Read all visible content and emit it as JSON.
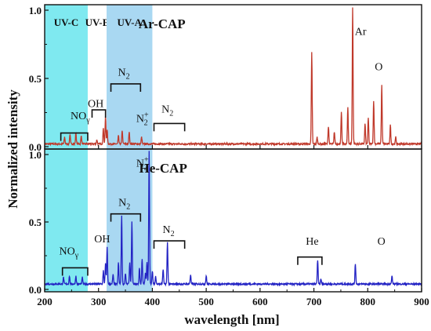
{
  "chart_data": {
    "type": "line",
    "xlabel": "wavelength [nm]",
    "ylabel": "Normalized intensity",
    "xlim": [
      200,
      900
    ],
    "x_ticks": [
      "200",
      "300",
      "400",
      "500",
      "600",
      "700",
      "800",
      "900"
    ],
    "x_tick_values": [
      200,
      300,
      400,
      500,
      600,
      700,
      800,
      900
    ],
    "grid": false,
    "uv_bands": [
      {
        "label": "UV-C",
        "range": [
          200,
          280
        ],
        "color": "#7fe9f0"
      },
      {
        "label": "UV-B",
        "range": [
          280,
          315
        ],
        "color": "#ffffff"
      },
      {
        "label": "UV-A",
        "range": [
          315,
          400
        ],
        "color": "#a9d8f2"
      }
    ],
    "panels": [
      {
        "title": "Ar-CAP",
        "ylim": [
          0,
          1.0
        ],
        "y_ticks": [
          "0.0",
          "0.5",
          "1.0"
        ],
        "y_tick_values": [
          0.0,
          0.5,
          1.0
        ],
        "line_color": "#c0392b",
        "baseline": 0.02,
        "peaks": [
          [
            237,
            0.05
          ],
          [
            247,
            0.07
          ],
          [
            258,
            0.08
          ],
          [
            268,
            0.06
          ],
          [
            297,
            0.03
          ],
          [
            309,
            0.12
          ],
          [
            313,
            0.2
          ],
          [
            316,
            0.1
          ],
          [
            337,
            0.06
          ],
          [
            344,
            0.1
          ],
          [
            357,
            0.09
          ],
          [
            380,
            0.05
          ],
          [
            696,
            0.67
          ],
          [
            706,
            0.05
          ],
          [
            727,
            0.13
          ],
          [
            738,
            0.09
          ],
          [
            751,
            0.23
          ],
          [
            763,
            0.27
          ],
          [
            772,
            1.0
          ],
          [
            795,
            0.15
          ],
          [
            801,
            0.19
          ],
          [
            811,
            0.32
          ],
          [
            826,
            0.43
          ],
          [
            842,
            0.14
          ],
          [
            852,
            0.05
          ]
        ],
        "annotations": [
          {
            "text": "NO",
            "sub": "γ",
            "sup": "",
            "at": [
              248,
              0.2
            ],
            "bracket": [
              230,
              280,
              0.1
            ]
          },
          {
            "text": "OH",
            "sub": "",
            "sup": "",
            "at": [
              280,
              0.29
            ],
            "bracket": [
              288,
              313,
              0.27
            ]
          },
          {
            "text": "N",
            "sub": "2",
            "sup": "",
            "at": [
              336,
              0.52
            ],
            "bracket": [
              323,
              378,
              0.46
            ]
          },
          {
            "text": "N",
            "sub": "2",
            "sup": "+",
            "at": [
              370,
              0.18
            ],
            "bracket": null
          },
          {
            "text": "N",
            "sub": "2",
            "sup": "",
            "at": [
              417,
              0.25
            ],
            "bracket": [
              403,
              460,
              0.17
            ]
          },
          {
            "text": "Ar",
            "sub": "",
            "sup": "",
            "at": [
              776,
              0.82
            ],
            "bracket": null
          },
          {
            "text": "O",
            "sub": "",
            "sup": "",
            "at": [
              813,
              0.56
            ],
            "bracket": null
          }
        ]
      },
      {
        "title": "He-CAP",
        "ylim": [
          0,
          1.0
        ],
        "y_ticks": [
          "0.0",
          "0.5",
          "1.0"
        ],
        "y_tick_values": [
          0.0,
          0.5,
          1.0
        ],
        "line_color": "#2323c4",
        "baseline": 0.04,
        "peaks": [
          [
            235,
            0.05
          ],
          [
            246,
            0.06
          ],
          [
            258,
            0.06
          ],
          [
            270,
            0.05
          ],
          [
            309,
            0.1
          ],
          [
            313,
            0.15
          ],
          [
            316,
            0.27
          ],
          [
            327,
            0.07
          ],
          [
            337,
            0.16
          ],
          [
            343,
            0.51
          ],
          [
            350,
            0.08
          ],
          [
            358,
            0.16
          ],
          [
            362,
            0.46
          ],
          [
            376,
            0.12
          ],
          [
            381,
            0.19
          ],
          [
            387,
            0.08
          ],
          [
            390,
            0.16
          ],
          [
            394,
            0.99
          ],
          [
            400,
            0.1
          ],
          [
            406,
            0.06
          ],
          [
            420,
            0.11
          ],
          [
            428,
            0.31
          ],
          [
            471,
            0.07
          ],
          [
            500,
            0.06
          ],
          [
            707,
            0.18
          ],
          [
            713,
            0.04
          ],
          [
            777,
            0.15
          ],
          [
            845,
            0.06
          ]
        ],
        "annotations": [
          {
            "text": "NO",
            "sub": "γ",
            "sup": "",
            "at": [
              227,
              0.26
            ],
            "bracket": [
              233,
              280,
              0.16
            ]
          },
          {
            "text": "OH",
            "sub": "",
            "sup": "",
            "at": [
              292,
              0.35
            ],
            "bracket": null
          },
          {
            "text": "N",
            "sub": "2",
            "sup": "",
            "at": [
              337,
              0.62
            ],
            "bracket": [
              323,
              378,
              0.56
            ]
          },
          {
            "text": "N",
            "sub": "2",
            "sup": "+",
            "at": [
              370,
              0.91
            ],
            "bracket": null
          },
          {
            "text": "N",
            "sub": "2",
            "sup": "",
            "at": [
              419,
              0.42
            ],
            "bracket": [
              403,
              460,
              0.36
            ]
          },
          {
            "text": "He",
            "sub": "",
            "sup": "",
            "at": [
              685,
              0.33
            ],
            "bracket": [
              670,
              715,
              0.24
            ]
          },
          {
            "text": "O",
            "sub": "",
            "sup": "",
            "at": [
              818,
              0.33
            ],
            "bracket": null
          }
        ]
      }
    ]
  }
}
